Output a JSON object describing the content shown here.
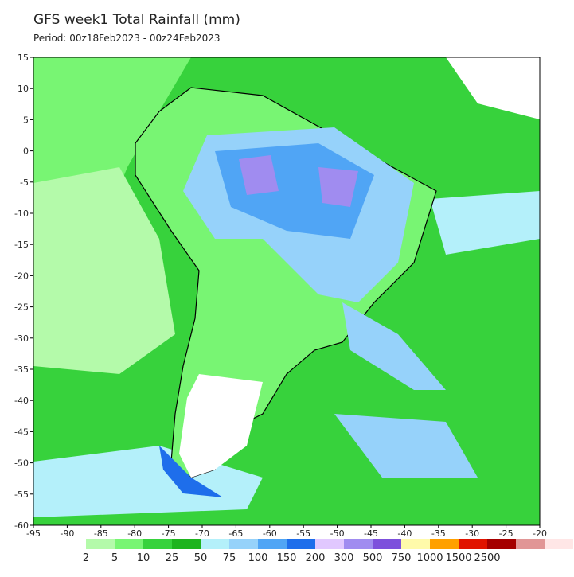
{
  "title": "GFS week1 Total Rainfall (mm)",
  "period": "Period: 00z18Feb2023 - 00z24Feb2023",
  "axes": {
    "lon_range": [
      -95,
      -20
    ],
    "lat_range": [
      15,
      -60
    ],
    "lon_ticks": [
      -95,
      -90,
      -85,
      -80,
      -75,
      -70,
      -65,
      -60,
      -55,
      -50,
      -45,
      -40,
      -35,
      -30,
      -25,
      -20
    ],
    "lat_ticks": [
      15,
      10,
      5,
      0,
      -5,
      -10,
      -15,
      -20,
      -25,
      -30,
      -35,
      -40,
      -45,
      -50,
      -55,
      -60
    ]
  },
  "legend": {
    "levels": [
      2,
      5,
      10,
      25,
      50,
      75,
      100,
      150,
      200,
      300,
      500,
      750,
      1000,
      1500,
      2500
    ],
    "colors": [
      "#b4faaa",
      "#78f573",
      "#37d23c",
      "#1eb41e",
      "#b4f0fa",
      "#96d2fa",
      "#50a5f5",
      "#1e6eeb",
      "#e1c8ff",
      "#a08cf0",
      "#7d50dc",
      "#fffaaa",
      "#ffa000",
      "#e11400",
      "#a50000"
    ],
    "extra_colors": [
      "#e19696",
      "#ffe6e6"
    ]
  }
}
